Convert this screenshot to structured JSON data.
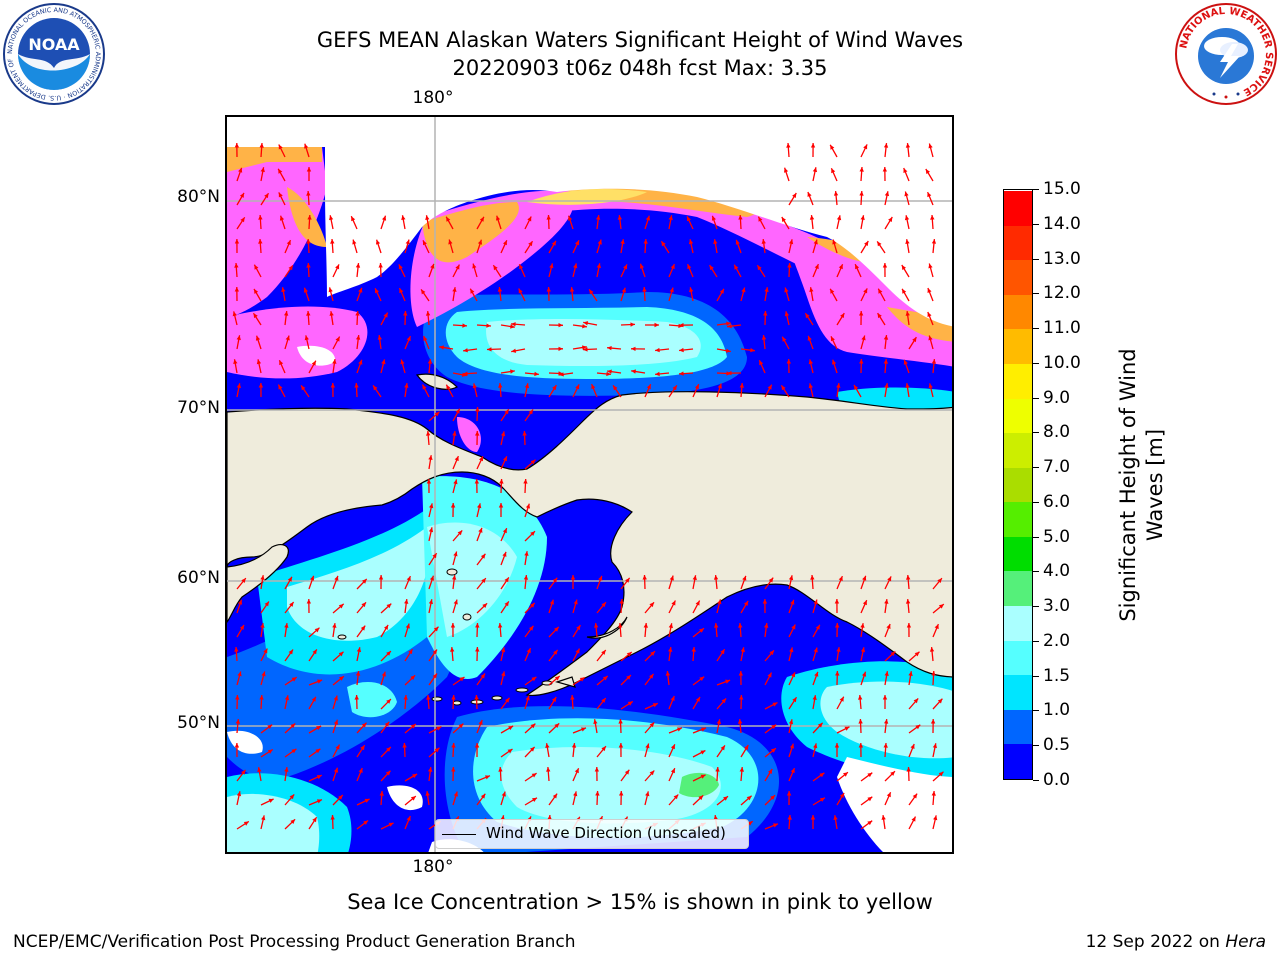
{
  "header": {
    "title_line1": "GEFS MEAN Alaskan Waters Significant Height of Wind Waves",
    "title_line2": "20220903 t06z 048h fcst   Max: 3.35"
  },
  "logos": {
    "left": {
      "icon": "noaa-logo-icon",
      "text": "NOAA",
      "ring_text": "NATIONAL OCEANIC AND ATMOSPHERIC ADMINISTRATION · U.S. DEPARTMENT OF COMMERCE"
    },
    "right": {
      "icon": "nws-logo-icon",
      "ring_text": "NATIONAL WEATHER SERVICE"
    }
  },
  "map": {
    "lon_label_top": "180°",
    "lon_label_bottom": "180°",
    "lat_labels": [
      "80°N",
      "70°N",
      "60°N",
      "50°N"
    ],
    "colors": {
      "land": "#efecdc",
      "ice": "#ffffff",
      "arrow": "#ff0000",
      "grid": "#b4b4b4",
      "sea_ice_pink": "#ff66ff",
      "sea_ice_orange": "#ffb347",
      "sea_ice_yellow": "#ffe066"
    },
    "legend": {
      "label": "Wind Wave Direction (unscaled)"
    }
  },
  "colorbar": {
    "title": "Significant Height of Wind Waves [m]",
    "levels": [
      "0.0",
      "0.5",
      "1.0",
      "1.5",
      "2.0",
      "3.0",
      "4.0",
      "5.0",
      "6.0",
      "7.0",
      "8.0",
      "9.0",
      "10.0",
      "11.0",
      "12.0",
      "13.0",
      "14.0",
      "15.0"
    ],
    "colors": [
      "#0000ff",
      "#0066ff",
      "#00e5ff",
      "#55ffff",
      "#aaffff",
      "#55f07a",
      "#00dd00",
      "#55ee00",
      "#aadd00",
      "#ccee00",
      "#eeff00",
      "#ffee00",
      "#ffbb00",
      "#ff8800",
      "#ff5500",
      "#ff2a00",
      "#ff0000"
    ]
  },
  "caption": "Sea Ice Concentration > 15% is shown in pink to yellow",
  "footer": {
    "left": "NCEP/EMC/Verification Post Processing Product Generation Branch",
    "right_prefix": "12 Sep 2022 on ",
    "right_machine": "Hera"
  }
}
